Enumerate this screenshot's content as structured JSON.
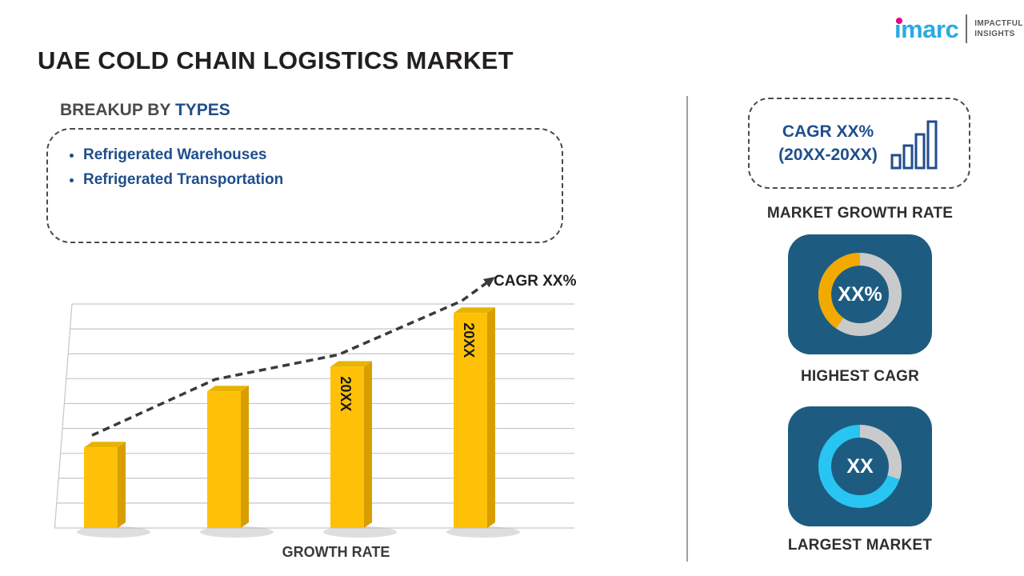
{
  "header": {
    "title": "UAE COLD CHAIN LOGISTICS MARKET",
    "logo": {
      "brand": "imarc",
      "tagline_line1": "IMPACTFUL",
      "tagline_line2": "INSIGHTS"
    }
  },
  "breakup": {
    "heading_prefix": "BREAKUP BY ",
    "heading_highlight": "TYPES",
    "items": [
      "Refrigerated Warehouses",
      "Refrigerated Transportation"
    ]
  },
  "chart_data": {
    "type": "bar",
    "title": "",
    "categories": [
      "",
      "",
      "20XX",
      "20XX"
    ],
    "values": [
      36,
      61,
      72,
      96
    ],
    "ymax": 100,
    "gridlines": 10,
    "grid_on": true,
    "legend": "none",
    "bar_color": "#FFC107",
    "bar_side_color": "#D89E00",
    "bar_top_color": "#E8B400",
    "trend_label": "CAGR XX%",
    "xlabel": "GROWTH RATE"
  },
  "right_panel": {
    "growth_box": {
      "line1": "CAGR XX%",
      "line2": "(20XX-20XX)",
      "caption": "MARKET GROWTH RATE"
    },
    "highest_cagr": {
      "value": "XX%",
      "caption": "HIGHEST CAGR",
      "ring_base": "#C9CACB",
      "arc_color": "#F2A900",
      "arc_start": 215,
      "arc_end": 360
    },
    "largest_market": {
      "value": "XX",
      "caption": "LARGEST MARKET",
      "ring_base": "#29C5F2",
      "arc_color": "#C9CACB",
      "arc_start": 0,
      "arc_end": 108
    }
  },
  "colors": {
    "accent_blue": "#1F4E8C",
    "card_blue": "#1D5C80",
    "bar_gold": "#FFC107",
    "divider": "#9aa0a6"
  }
}
